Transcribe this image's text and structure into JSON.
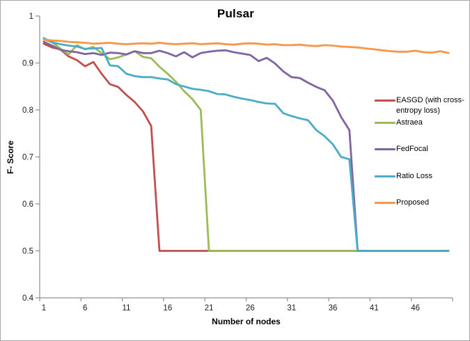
{
  "chart_data": {
    "type": "line",
    "title": "Pulsar",
    "xlabel": "Number of nodes",
    "ylabel": "F- Score",
    "x_start": 1,
    "x_end": 50,
    "ylim": [
      0.4,
      1.0
    ],
    "y_tick_labels": [
      "1",
      "0.9",
      "0.8",
      "0.7",
      "0.6",
      "0.5",
      "0.4"
    ],
    "y_tick_values": [
      1,
      0.9,
      0.8,
      0.7,
      0.6,
      0.5,
      0.4
    ],
    "x_tick_labels": [
      "1",
      "6",
      "11",
      "16",
      "21",
      "26",
      "31",
      "36",
      "41",
      "46"
    ],
    "grid": false,
    "legend_position": "right",
    "axis_color": "#8e8e8e",
    "tick_label_color": "#1a1a1a",
    "series": [
      {
        "name": "EASGD (with cross-entropy loss)",
        "color": "#C0504D",
        "values": [
          0.941,
          0.933,
          0.929,
          0.914,
          0.906,
          0.893,
          0.902,
          0.877,
          0.855,
          0.849,
          0.832,
          0.817,
          0.797,
          0.766,
          0.5,
          0.5,
          0.5,
          0.5,
          0.5,
          0.5,
          0.5,
          0.5,
          0.5,
          0.5,
          0.5,
          0.5,
          0.5,
          0.5,
          0.5,
          0.5,
          0.5,
          0.5,
          0.5,
          0.5,
          0.5,
          0.5,
          0.5,
          0.5,
          0.5,
          0.5,
          0.5,
          0.5,
          0.5,
          0.5,
          0.5,
          0.5,
          0.5,
          0.5,
          0.5,
          0.5
        ]
      },
      {
        "name": "Astraea",
        "color": "#9BBB59",
        "values": [
          0.95,
          0.944,
          0.931,
          0.918,
          0.938,
          0.929,
          0.934,
          0.921,
          0.908,
          0.912,
          0.918,
          0.925,
          0.913,
          0.91,
          0.892,
          0.877,
          0.86,
          0.84,
          0.823,
          0.8,
          0.5,
          0.5,
          0.5,
          0.5,
          0.5,
          0.5,
          0.5,
          0.5,
          0.5,
          0.5,
          0.5,
          0.5,
          0.5,
          0.5,
          0.5,
          0.5,
          0.5,
          0.5,
          0.5,
          0.5,
          0.5,
          0.5,
          0.5,
          0.5,
          0.5,
          0.5,
          0.5,
          0.5,
          0.5,
          0.5
        ]
      },
      {
        "name": "FedFocal",
        "color": "#8064A2",
        "values": [
          0.945,
          0.937,
          0.928,
          0.925,
          0.923,
          0.919,
          0.921,
          0.917,
          0.922,
          0.921,
          0.918,
          0.925,
          0.921,
          0.921,
          0.926,
          0.921,
          0.914,
          0.923,
          0.912,
          0.921,
          0.924,
          0.926,
          0.927,
          0.923,
          0.92,
          0.917,
          0.904,
          0.911,
          0.899,
          0.882,
          0.87,
          0.868,
          0.858,
          0.849,
          0.842,
          0.82,
          0.785,
          0.757,
          0.5,
          0.5,
          0.5,
          0.5,
          0.5,
          0.5,
          0.5,
          0.5,
          0.5,
          0.5,
          0.5,
          0.5
        ]
      },
      {
        "name": "Ratio Loss",
        "color": "#4BACC6",
        "values": [
          0.953,
          0.944,
          0.94,
          0.937,
          0.935,
          0.93,
          0.931,
          0.932,
          0.895,
          0.893,
          0.877,
          0.872,
          0.87,
          0.87,
          0.867,
          0.865,
          0.855,
          0.85,
          0.845,
          0.843,
          0.84,
          0.834,
          0.833,
          0.828,
          0.824,
          0.821,
          0.817,
          0.814,
          0.813,
          0.793,
          0.787,
          0.782,
          0.778,
          0.757,
          0.744,
          0.727,
          0.7,
          0.695,
          0.5,
          0.5,
          0.5,
          0.5,
          0.5,
          0.5,
          0.5,
          0.5,
          0.5,
          0.5,
          0.5,
          0.5
        ]
      },
      {
        "name": "Proposed",
        "color": "#F79646",
        "values": [
          0.95,
          0.948,
          0.947,
          0.945,
          0.944,
          0.943,
          0.941,
          0.942,
          0.943,
          0.941,
          0.94,
          0.941,
          0.942,
          0.941,
          0.943,
          0.941,
          0.94,
          0.941,
          0.942,
          0.94,
          0.941,
          0.942,
          0.94,
          0.939,
          0.941,
          0.942,
          0.941,
          0.939,
          0.94,
          0.938,
          0.938,
          0.939,
          0.937,
          0.936,
          0.938,
          0.937,
          0.935,
          0.934,
          0.933,
          0.931,
          0.929,
          0.927,
          0.925,
          0.924,
          0.924,
          0.926,
          0.923,
          0.922,
          0.925,
          0.921
        ]
      }
    ]
  }
}
